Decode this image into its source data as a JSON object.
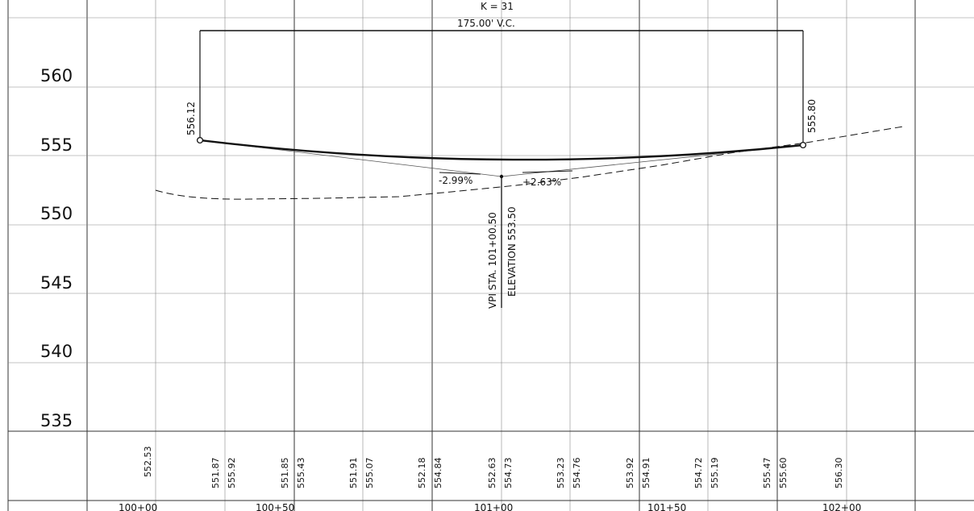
{
  "elevation_axis": {
    "labels": [
      "560",
      "555",
      "550",
      "545",
      "540",
      "535"
    ]
  },
  "vertical_curve": {
    "k_label": "K = 31",
    "length_label": "175.00' V.C.",
    "pvc_elevation": "556.12",
    "pvt_elevation": "555.80",
    "grade_in": "-2.99%",
    "grade_out": "+2.63%",
    "vpi_station": "VPI STA. 101+00.50",
    "vpi_elevation": "ELEVATION 553.50"
  },
  "bottom_values": {
    "existing": [
      "552.53",
      "551.87",
      "551.85",
      "551.91",
      "552.18",
      "552.63",
      "553.23",
      "553.92",
      "554.72",
      "555.47",
      "556.30"
    ],
    "proposed": [
      "555.92",
      "555.43",
      "555.07",
      "554.84",
      "554.73",
      "554.76",
      "554.91",
      "555.19",
      "555.60"
    ]
  },
  "stations": [
    "100+00",
    "100+50",
    "101+00",
    "101+50",
    "102+00"
  ],
  "chart_data": {
    "type": "line",
    "title": "",
    "xlabel": "",
    "ylabel": "",
    "ylim": [
      531,
      563
    ],
    "y_ticks": [
      560,
      555,
      550,
      545,
      540,
      535
    ],
    "x_ticks": [
      "100+00",
      "100+50",
      "101+00",
      "101+50",
      "102+00"
    ],
    "grid": true,
    "annotations": [
      "K = 31",
      "175.00' V.C.",
      "556.12",
      "555.80",
      "-2.99%",
      "+2.63%",
      "VPI STA. 101+00.50",
      "ELEVATION 553.50"
    ],
    "series": [
      {
        "x": [
          100.125,
          100.25,
          100.5,
          100.75,
          101.0,
          101.25,
          101.5,
          101.75,
          101.875
        ],
        "y": [
          556.12,
          555.92,
          555.43,
          555.07,
          554.84,
          554.73,
          554.76,
          555.19,
          555.8
        ]
      },
      {
        "x": [
          99.9,
          100.0,
          100.25,
          100.5,
          100.75,
          101.0,
          101.25,
          101.5,
          101.75,
          102.0,
          102.2
        ],
        "y": [
          552.8,
          552.53,
          551.87,
          551.85,
          551.91,
          552.18,
          552.63,
          553.23,
          553.92,
          554.72,
          555.47
        ]
      }
    ]
  }
}
